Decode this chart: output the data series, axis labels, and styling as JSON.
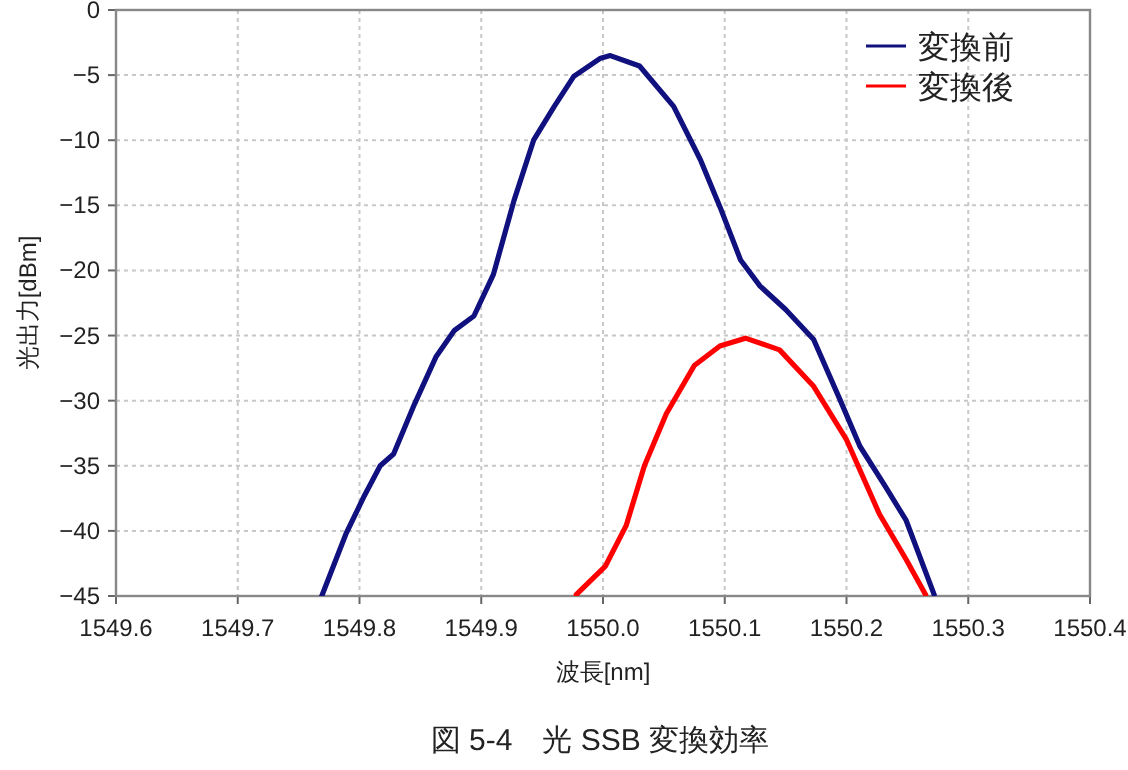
{
  "chart_data": {
    "type": "line",
    "title": "図 5-4　光 SSB 変換効率",
    "xlabel": "波長[nm]",
    "ylabel": "光出力[dBm]",
    "xlim": [
      1549.6,
      1550.4
    ],
    "xticks": [
      {
        "value": 1549.6,
        "label": "1549.6"
      },
      {
        "value": 1549.7,
        "label": "1549.7"
      },
      {
        "value": 1549.8,
        "label": "1549.8"
      },
      {
        "value": 1549.9,
        "label": "1549.9"
      },
      {
        "value": 1550.0,
        "label": "1550.0"
      },
      {
        "value": 1550.1,
        "label": "1550.1"
      },
      {
        "value": 1550.2,
        "label": "1550.2"
      },
      {
        "value": 1550.3,
        "label": "1550.3"
      },
      {
        "value": 1550.4,
        "label": "1550.4"
      }
    ],
    "ylim": [
      -45,
      0
    ],
    "yticks": [
      0,
      {
        "value": -5,
        "label": "−5"
      },
      {
        "value": -10,
        "label": "−10"
      },
      {
        "value": -15,
        "label": "−15"
      },
      {
        "value": -20,
        "label": "−20"
      },
      {
        "value": -25,
        "label": "−25"
      },
      {
        "value": -30,
        "label": "−30"
      },
      {
        "value": -35,
        "label": "−35"
      },
      {
        "value": -40,
        "label": "−40"
      },
      {
        "value": -45,
        "label": "−45"
      }
    ],
    "grid": true,
    "legend": "top right",
    "marker": "none",
    "line_style": "solid",
    "series": [
      {
        "name": "変換前",
        "color": "#10107f",
        "x": [
          1549.769,
          1549.789,
          1549.804,
          1549.817,
          1549.828,
          1549.845,
          1549.863,
          1549.878,
          1549.894,
          1549.91,
          1549.927,
          1549.943,
          1549.96,
          1549.976,
          1549.998,
          1550.006,
          1550.03,
          1550.058,
          1550.08,
          1550.096,
          1550.113,
          1550.129,
          1550.15,
          1550.173,
          1550.195,
          1550.211,
          1550.232,
          1550.249,
          1550.272
        ],
        "values": [
          -45,
          -40.2,
          -37.3,
          -35,
          -34.1,
          -30.3,
          -26.6,
          -24.6,
          -23.5,
          -20.3,
          -14.6,
          -10,
          -7.4,
          -5.1,
          -3.7,
          -3.5,
          -4.3,
          -7.4,
          -11.5,
          -15.1,
          -19.2,
          -21.2,
          -23,
          -25.3,
          -30,
          -33.5,
          -36.6,
          -39.2,
          -44.9
        ]
      },
      {
        "name": "変換後",
        "color": "#ff0000",
        "x": [
          1549.978,
          1550.002,
          1550.019,
          1550.034,
          1550.052,
          1550.075,
          1550.096,
          1550.117,
          1550.145,
          1550.173,
          1550.2,
          1550.227,
          1550.249,
          1550.265
        ],
        "values": [
          -44.9,
          -42.7,
          -39.6,
          -35,
          -31,
          -27.3,
          -25.8,
          -25.2,
          -26.1,
          -28.9,
          -33,
          -38.7,
          -42.2,
          -44.9
        ]
      }
    ]
  }
}
